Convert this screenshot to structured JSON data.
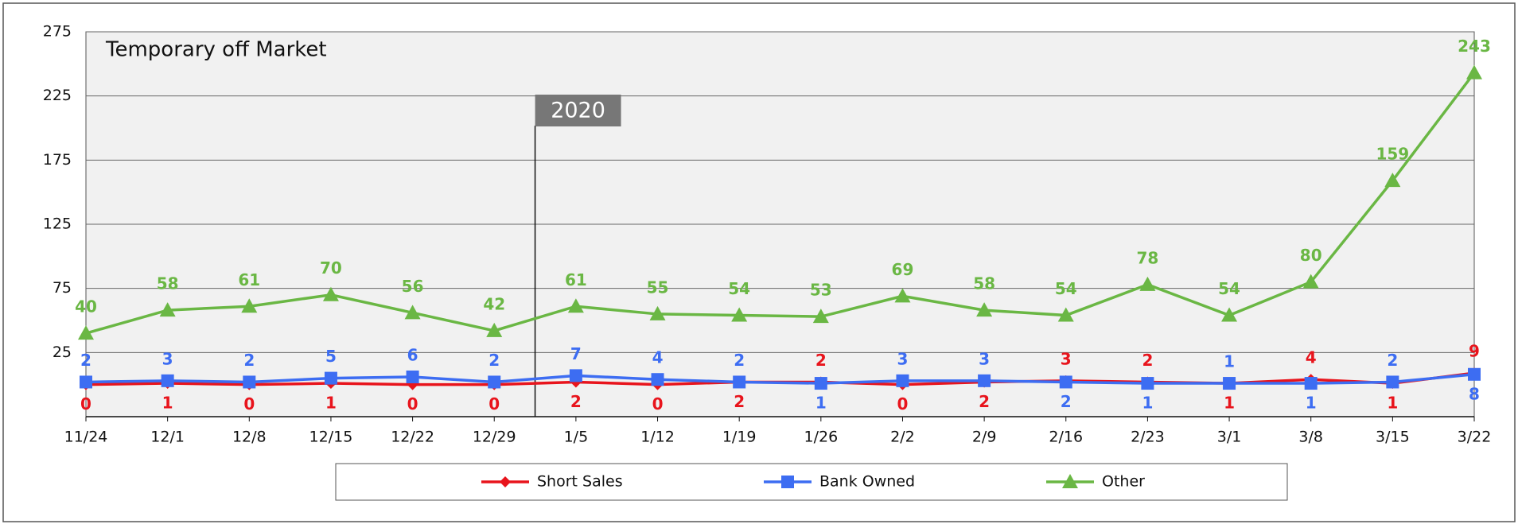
{
  "chart_data": {
    "type": "line",
    "title": "Temporary off Market",
    "categories": [
      "11/24",
      "12/1",
      "12/8",
      "12/15",
      "12/22",
      "12/29",
      "1/5",
      "1/12",
      "1/19",
      "1/26",
      "2/2",
      "2/9",
      "2/16",
      "2/23",
      "3/1",
      "3/8",
      "3/15",
      "3/22"
    ],
    "series": [
      {
        "name": "Short Sales",
        "color": "#e8141c",
        "values": [
          0,
          1,
          0,
          1,
          0,
          0,
          2,
          0,
          2,
          2,
          0,
          2,
          3,
          2,
          1,
          4,
          1,
          9
        ]
      },
      {
        "name": "Bank Owned",
        "color": "#3d6df2",
        "values": [
          2,
          3,
          2,
          5,
          6,
          2,
          7,
          4,
          2,
          1,
          3,
          3,
          2,
          1,
          1,
          1,
          2,
          8
        ]
      },
      {
        "name": "Other",
        "color": "#6ab744",
        "values": [
          40,
          58,
          61,
          70,
          56,
          42,
          61,
          55,
          54,
          53,
          69,
          58,
          54,
          78,
          54,
          80,
          159,
          243
        ]
      }
    ],
    "ylim": [
      -25,
      275
    ],
    "yticks": [
      25,
      75,
      125,
      175,
      225,
      275
    ],
    "grid": true,
    "annotation": "2020",
    "legend": "bottom"
  }
}
